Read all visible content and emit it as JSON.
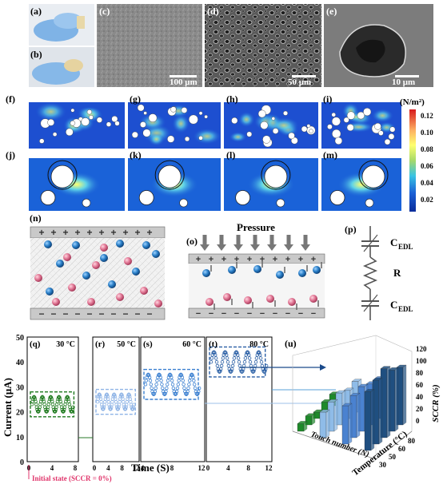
{
  "panel_labels": {
    "a": "(a)",
    "b": "(b)",
    "c": "(c)",
    "d": "(d)",
    "e": "(e)",
    "f": "(f)",
    "g": "(g)",
    "h": "(h)",
    "i": "(i)",
    "j": "(j)",
    "k": "(k)",
    "l": "(l)",
    "m": "(m)",
    "n": "(n)",
    "o": "(o)",
    "p": "(p)",
    "q": "(q)",
    "r": "(r)",
    "s": "(s)",
    "t": "(t)",
    "u": "(u)"
  },
  "scale_bars": {
    "c": "100 μm",
    "d": "50 μm",
    "e": "10 μm"
  },
  "colorbar": {
    "unit": "(N/m²)",
    "ticks": [
      "0.12",
      "0.10",
      "0.08",
      "0.06",
      "0.04",
      "0.02"
    ],
    "colors": [
      "#d7191c",
      "#fdae61",
      "#ffff6f",
      "#a6d96a",
      "#38c3e3",
      "#1a5fd6",
      "#0a2c9a"
    ]
  },
  "schematic": {
    "plus": "+",
    "minus": "−",
    "ion_minus": "−",
    "ion_plus": "+",
    "pressure": "Pressure",
    "circuit": {
      "c1": "C",
      "c1_sub": "EDL",
      "r": "R",
      "c2": "C",
      "c2_sub": "EDL"
    }
  },
  "current_plots": {
    "ylabel": "Current (μA)",
    "xlabel": "Time (S)",
    "yticks": [
      "50",
      "40",
      "30",
      "20",
      "10",
      "0"
    ],
    "note": "Initial state (SCCR = 0%)",
    "panels": [
      {
        "id": "q",
        "temp": "30 °C",
        "xticks": [
          "0",
          "4",
          "8"
        ],
        "color": "#1e7a1e"
      },
      {
        "id": "r",
        "temp": "50 °C",
        "xticks": [
          "0",
          "4",
          "8",
          "12"
        ],
        "color": "#8fb4e6"
      },
      {
        "id": "s",
        "temp": "60 °C",
        "xticks": [
          "4",
          "8",
          "12"
        ],
        "color": "#3a7fd0"
      },
      {
        "id": "t",
        "temp": "80 °C",
        "xticks": [
          "0",
          "4",
          "8",
          "12"
        ],
        "color": "#2a5fa5"
      }
    ]
  },
  "bar3d": {
    "zlabel": "SCCR (%)",
    "zticks": [
      "120",
      "100",
      "80",
      "60",
      "40",
      "20",
      "0"
    ],
    "xlabel": "Temperature (°C)",
    "xticks": [
      "30",
      "50",
      "60",
      "80"
    ],
    "ylabel": "Touch number (N)"
  }
}
